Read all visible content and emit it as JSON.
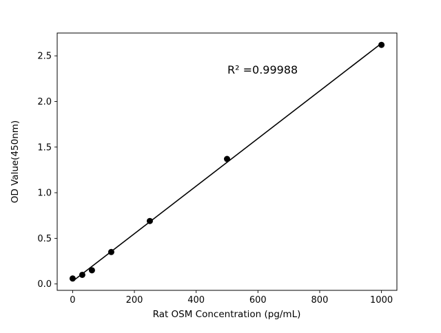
{
  "figure": {
    "background": "#ffffff",
    "frame_color": "#000000"
  },
  "chart_data": {
    "type": "scatter",
    "title": "",
    "xlabel": "Rat OSM Concentration (pg/mL)",
    "ylabel": "OD Value(450nm)",
    "annotation": "R² =0.99988",
    "series": [
      {
        "name": "standard-curve",
        "x": [
          0,
          31.25,
          62.5,
          125,
          250,
          500,
          1000
        ],
        "y": [
          0.06,
          0.1,
          0.15,
          0.35,
          0.69,
          1.37,
          2.62
        ]
      }
    ],
    "trendline": true,
    "grid": false,
    "legend_position": "none",
    "xlim": [
      -50,
      1050
    ],
    "ylim": [
      -0.07,
      2.75
    ],
    "xticks": [
      0,
      200,
      400,
      600,
      800,
      1000
    ],
    "xtick_labels": [
      "0",
      "200",
      "400",
      "600",
      "800",
      "1000"
    ],
    "yticks": [
      0.0,
      0.5,
      1.0,
      1.5,
      2.0,
      2.5
    ],
    "ytick_labels": [
      "0.0",
      "0.5",
      "1.0",
      "1.5",
      "2.0",
      "2.5"
    ],
    "marker_color": "#000000",
    "line_color": "#000000"
  }
}
